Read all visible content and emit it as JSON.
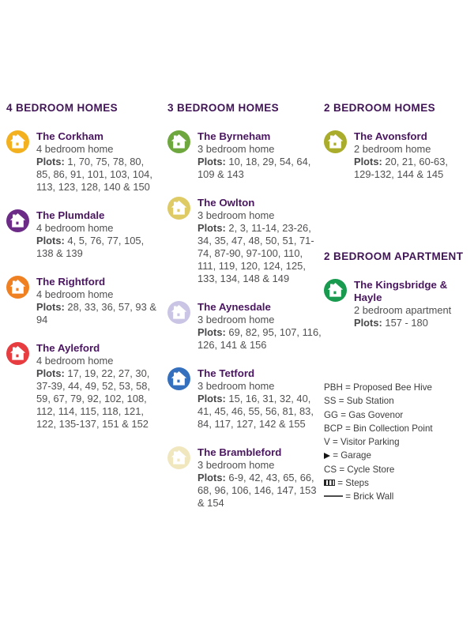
{
  "sections": [
    {
      "id": "four-bed",
      "title": "4 BEDROOM HOMES",
      "entries": [
        {
          "name": "The Corkham",
          "type": "4 bedroom home",
          "plots_label": "Plots:",
          "plots": "1, 70, 75, 78, 80, 85, 86, 91, 101, 103, 104, 113, 123, 128, 140 & 150",
          "color": "#F3B01F",
          "icon": "house-icon"
        },
        {
          "name": "The Plumdale",
          "type": "4 bedroom home",
          "plots_label": "Plots:",
          "plots": "4, 5, 76, 77, 105, 138 & 139",
          "color": "#6C2B87",
          "icon": "house-icon"
        },
        {
          "name": "The Rightford",
          "type": "4 bedroom home",
          "plots_label": "Plots:",
          "plots": "28, 33, 36, 57, 93 & 94",
          "color": "#F08122",
          "icon": "house-icon"
        },
        {
          "name": "The Ayleford",
          "type": "4 bedroom home",
          "plots_label": "Plots:",
          "plots": "17, 19, 22, 27, 30, 37-39, 44, 49, 52, 53, 58, 59, 67, 79, 92, 102, 108, 112, 114, 115, 118, 121, 122, 135-137, 151 & 152",
          "color": "#E73C40",
          "icon": "house-icon"
        }
      ]
    },
    {
      "id": "three-bed",
      "title": "3 BEDROOM HOMES",
      "entries": [
        {
          "name": "The Byrneham",
          "type": "3 bedroom home",
          "plots_label": "Plots:",
          "plots": "10, 18, 29, 54, 64, 109 & 143",
          "color": "#6FA73F",
          "icon": "house-icon"
        },
        {
          "name": "The Owlton",
          "type": "3 bedroom home",
          "plots_label": "Plots:",
          "plots": "2, 3, 11-14, 23-26, 34, 35, 47, 48, 50, 51, 71-74, 87-90, 97-100, 110, 111, 119, 120, 124, 125, 133, 134, 148 & 149",
          "color": "#DECB66",
          "icon": "house-icon"
        },
        {
          "name": "The Aynesdale",
          "type": "3 bedroom home",
          "plots_label": "Plots:",
          "plots": "69, 82, 95, 107, 116, 126, 141 & 156",
          "color": "#CBC5E5",
          "icon": "house-icon"
        },
        {
          "name": "The Tetford",
          "type": "3 bedroom home",
          "plots_label": "Plots:",
          "plots": "15, 16, 31, 32, 40, 41, 45, 46, 55, 56, 81, 83, 84, 117, 127, 142 & 155",
          "color": "#3470BE",
          "icon": "house-icon"
        },
        {
          "name": "The Brambleford",
          "type": "3 bedroom home",
          "plots_label": "Plots:",
          "plots": "6-9, 42, 43, 65, 66, 68, 96, 106, 146, 147, 153 & 154",
          "color": "#F1E7BE",
          "icon": "house-icon"
        }
      ]
    },
    {
      "id": "two-bed",
      "title": "2 BEDROOM HOMES",
      "entries": [
        {
          "name": "The Avonsford",
          "type": "2 bedroom home",
          "plots_label": "Plots:",
          "plots": "20, 21, 60-63, 129-132, 144 & 145",
          "color": "#A9AD2B",
          "icon": "house-icon"
        }
      ]
    },
    {
      "id": "two-bed-apartment",
      "title": "2 BEDROOM APARTMENT",
      "entries": [
        {
          "name": "The Kingsbridge & Hayle",
          "type": "2 bedroom apartment",
          "plots_label": "Plots:",
          "plots": "157 - 180",
          "color": "#189A4F",
          "icon": "house-icon"
        }
      ]
    }
  ],
  "legend": [
    {
      "label": "PBH",
      "equals": "=",
      "meaning": "Proposed Bee Hive",
      "icon": null
    },
    {
      "label": "SS",
      "equals": "=",
      "meaning": "Sub Station",
      "icon": null
    },
    {
      "label": "GG",
      "equals": "=",
      "meaning": "Gas Govenor",
      "icon": null
    },
    {
      "label": "BCP",
      "equals": "=",
      "meaning": "Bin Collection Point",
      "icon": null
    },
    {
      "label": "V",
      "equals": "=",
      "meaning": "Visitor Parking",
      "icon": null
    },
    {
      "label": null,
      "equals": "=",
      "meaning": "Garage",
      "icon": "garage"
    },
    {
      "label": "CS",
      "equals": "=",
      "meaning": "Cycle Store",
      "icon": null
    },
    {
      "label": null,
      "equals": "=",
      "meaning": "Steps",
      "icon": "steps"
    },
    {
      "label": null,
      "equals": "=",
      "meaning": "Brick Wall",
      "icon": "brick-wall"
    }
  ]
}
